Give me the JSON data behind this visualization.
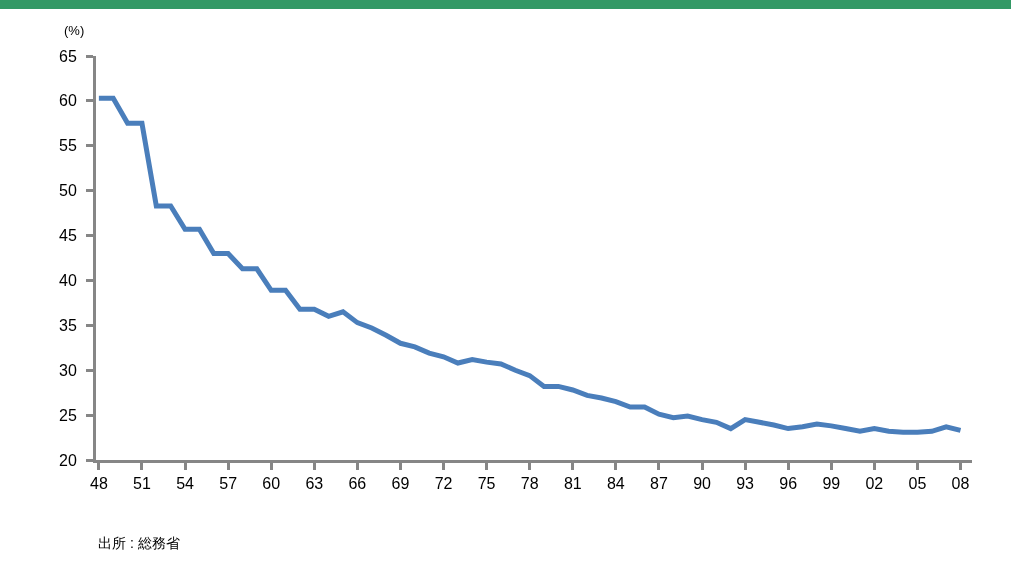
{
  "chart_data": {
    "type": "line",
    "ylabel": "(%)",
    "annotations": [
      "出所 : 総務省"
    ],
    "x": [
      1948,
      1949,
      1950,
      1951,
      1952,
      1953,
      1954,
      1955,
      1956,
      1957,
      1958,
      1959,
      1960,
      1961,
      1962,
      1963,
      1964,
      1965,
      1966,
      1967,
      1968,
      1969,
      1970,
      1971,
      1972,
      1973,
      1974,
      1975,
      1976,
      1977,
      1978,
      1979,
      1980,
      1981,
      1982,
      1983,
      1984,
      1985,
      1986,
      1987,
      1988,
      1989,
      1990,
      1991,
      1992,
      1993,
      1994,
      1995,
      1996,
      1997,
      1998,
      1999,
      2000,
      2001,
      2002,
      2003,
      2004,
      2005,
      2006,
      2007,
      2008
    ],
    "series": [
      {
        "color": "#4a7ebb",
        "values": [
          60.3,
          60.3,
          57.5,
          57.5,
          48.3,
          48.3,
          45.7,
          45.7,
          43.0,
          43.0,
          41.3,
          41.3,
          38.9,
          38.9,
          36.8,
          36.8,
          36.0,
          36.5,
          35.3,
          34.7,
          33.9,
          33.0,
          32.6,
          31.9,
          31.5,
          30.8,
          31.2,
          30.9,
          30.7,
          30.0,
          29.4,
          28.2,
          28.2,
          27.8,
          27.2,
          26.9,
          26.5,
          25.9,
          25.9,
          25.1,
          24.7,
          24.9,
          24.5,
          24.2,
          23.5,
          24.5,
          24.2,
          23.9,
          23.5,
          23.7,
          24.0,
          23.8,
          23.5,
          23.2,
          23.5,
          23.2,
          23.1,
          23.1,
          23.2,
          23.7,
          23.3
        ]
      }
    ],
    "xlim": [
      1947.8,
      2008.8
    ],
    "xticks": [
      {
        "value": 1948,
        "label": "48"
      },
      {
        "value": 1951,
        "label": "51"
      },
      {
        "value": 1954,
        "label": "54"
      },
      {
        "value": 1957,
        "label": "57"
      },
      {
        "value": 1960,
        "label": "60"
      },
      {
        "value": 1963,
        "label": "63"
      },
      {
        "value": 1966,
        "label": "66"
      },
      {
        "value": 1969,
        "label": "69"
      },
      {
        "value": 1972,
        "label": "72"
      },
      {
        "value": 1975,
        "label": "75"
      },
      {
        "value": 1978,
        "label": "78"
      },
      {
        "value": 1981,
        "label": "81"
      },
      {
        "value": 1984,
        "label": "84"
      },
      {
        "value": 1987,
        "label": "87"
      },
      {
        "value": 1990,
        "label": "90"
      },
      {
        "value": 1993,
        "label": "93"
      },
      {
        "value": 1996,
        "label": "96"
      },
      {
        "value": 1999,
        "label": "99"
      },
      {
        "value": 2002,
        "label": "02"
      },
      {
        "value": 2005,
        "label": "05"
      },
      {
        "value": 2008,
        "label": "08"
      }
    ],
    "ylim": [
      20,
      65
    ],
    "yticks": [
      20,
      25,
      30,
      35,
      40,
      45,
      50,
      55,
      60,
      65
    ],
    "grid": false,
    "marker": "none",
    "line_style": "solid"
  }
}
